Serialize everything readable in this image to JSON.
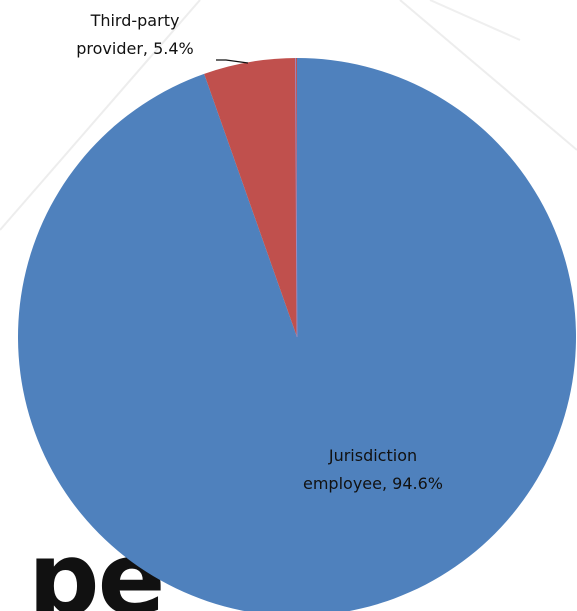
{
  "background": {
    "partial_heading_text": "pe"
  },
  "chart_data": {
    "type": "pie",
    "title": "",
    "legend": "none",
    "slices": [
      {
        "name": "Jurisdiction employee",
        "value": 94.6,
        "label_lines": [
          "Jurisdiction",
          "employee, 94.6%"
        ],
        "color": "#4f81bd"
      },
      {
        "name": "Third-party provider",
        "value": 5.4,
        "label_lines": [
          "Third-party",
          "provider, 5.4%"
        ],
        "color": "#c0504d"
      }
    ],
    "sliver_color": "#9b8ac0"
  }
}
